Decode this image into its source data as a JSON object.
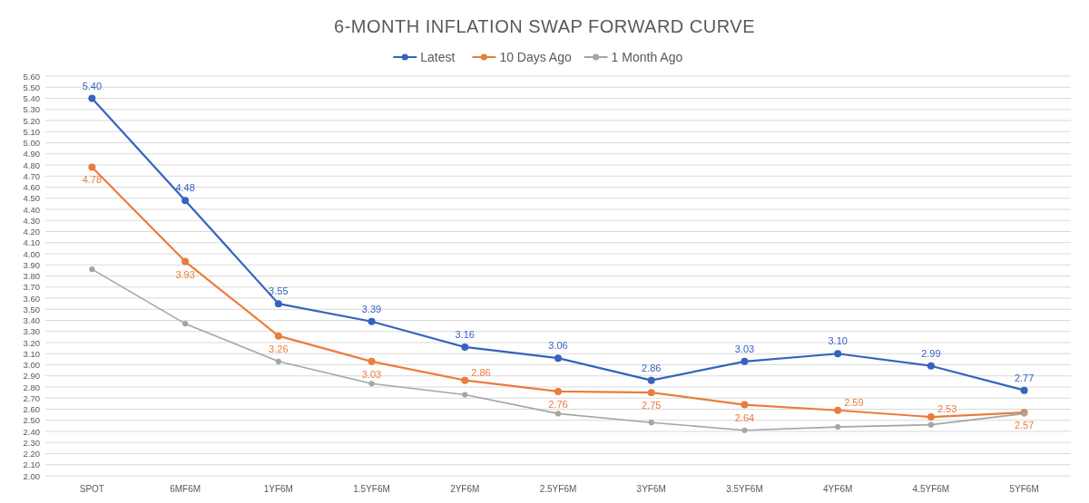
{
  "chart_data": {
    "type": "line",
    "title": "6-MONTH INFLATION SWAP FORWARD CURVE",
    "categories": [
      "SPOT",
      "6MF6M",
      "1YF6M",
      "1.5YF6M",
      "2YF6M",
      "2.5YF6M",
      "3YF6M",
      "3.5YF6M",
      "4YF6M",
      "4.5YF6M",
      "5YF6M"
    ],
    "series": [
      {
        "name": "Latest",
        "color": "#3563be",
        "values": [
          5.4,
          4.48,
          3.55,
          3.39,
          3.16,
          3.06,
          2.86,
          3.03,
          3.1,
          2.99,
          2.77
        ],
        "value_labels": [
          "5.40",
          "4.48",
          "3.55",
          "3.39",
          "3.16",
          "3.06",
          "2.86",
          "3.03",
          "3.10",
          "2.99",
          "2.77"
        ]
      },
      {
        "name": "10 Days Ago",
        "color": "#ea7d3c",
        "values": [
          4.78,
          3.93,
          3.26,
          3.03,
          2.86,
          2.76,
          2.75,
          2.64,
          2.59,
          2.53,
          2.57
        ],
        "value_labels": [
          "4.78",
          "3.93",
          "3.26",
          "3.03",
          "2.86",
          "2.76",
          "2.75",
          "2.64",
          "2.59",
          "2.53",
          "2.57"
        ]
      },
      {
        "name": "1 Month Ago",
        "color": "#a5a5a5",
        "values": [
          3.86,
          3.37,
          3.03,
          2.83,
          2.73,
          2.56,
          2.48,
          2.41,
          2.44,
          2.46,
          2.56
        ]
      }
    ],
    "ylim": [
      2.0,
      5.6
    ],
    "yticks": [
      {
        "value": 2.0,
        "label": "2.00"
      },
      {
        "value": 2.1,
        "label": "2.10"
      },
      {
        "value": 2.2,
        "label": "2.20"
      },
      {
        "value": 2.3,
        "label": "2.30"
      },
      {
        "value": 2.4,
        "label": "2.40"
      },
      {
        "value": 2.5,
        "label": "2.50"
      },
      {
        "value": 2.6,
        "label": "2.60"
      },
      {
        "value": 2.7,
        "label": "2.70"
      },
      {
        "value": 2.8,
        "label": "2.80"
      },
      {
        "value": 2.9,
        "label": "2.90"
      },
      {
        "value": 3.0,
        "label": "3.00"
      },
      {
        "value": 3.1,
        "label": "3.10"
      },
      {
        "value": 3.2,
        "label": "3.20"
      },
      {
        "value": 3.3,
        "label": "3.30"
      },
      {
        "value": 3.4,
        "label": "3.40"
      },
      {
        "value": 3.5,
        "label": "3.50"
      },
      {
        "value": 3.6,
        "label": "3.60"
      },
      {
        "value": 3.7,
        "label": "3.70"
      },
      {
        "value": 3.8,
        "label": "3.80"
      },
      {
        "value": 3.9,
        "label": "3.90"
      },
      {
        "value": 4.0,
        "label": "4.00"
      },
      {
        "value": 4.1,
        "label": "4.10"
      },
      {
        "value": 4.2,
        "label": "4.20"
      },
      {
        "value": 4.3,
        "label": "4.30"
      },
      {
        "value": 4.4,
        "label": "4.40"
      },
      {
        "value": 4.5,
        "label": "4.50"
      },
      {
        "value": 4.6,
        "label": "4.60"
      },
      {
        "value": 4.7,
        "label": "4.70"
      },
      {
        "value": 4.8,
        "label": "4.80"
      },
      {
        "value": 4.9,
        "label": "4.90"
      },
      {
        "value": 5.0,
        "label": "5.00"
      },
      {
        "value": 5.1,
        "label": "5.10"
      },
      {
        "value": 5.2,
        "label": "5.20"
      },
      {
        "value": 5.3,
        "label": "5.30"
      },
      {
        "value": 5.4,
        "label": "5.40"
      },
      {
        "value": 5.5,
        "label": "5.50"
      },
      {
        "value": 5.6,
        "label": "5.60"
      }
    ],
    "grid": "y",
    "legend": "top",
    "marker": "circle",
    "line_style": "solid"
  }
}
